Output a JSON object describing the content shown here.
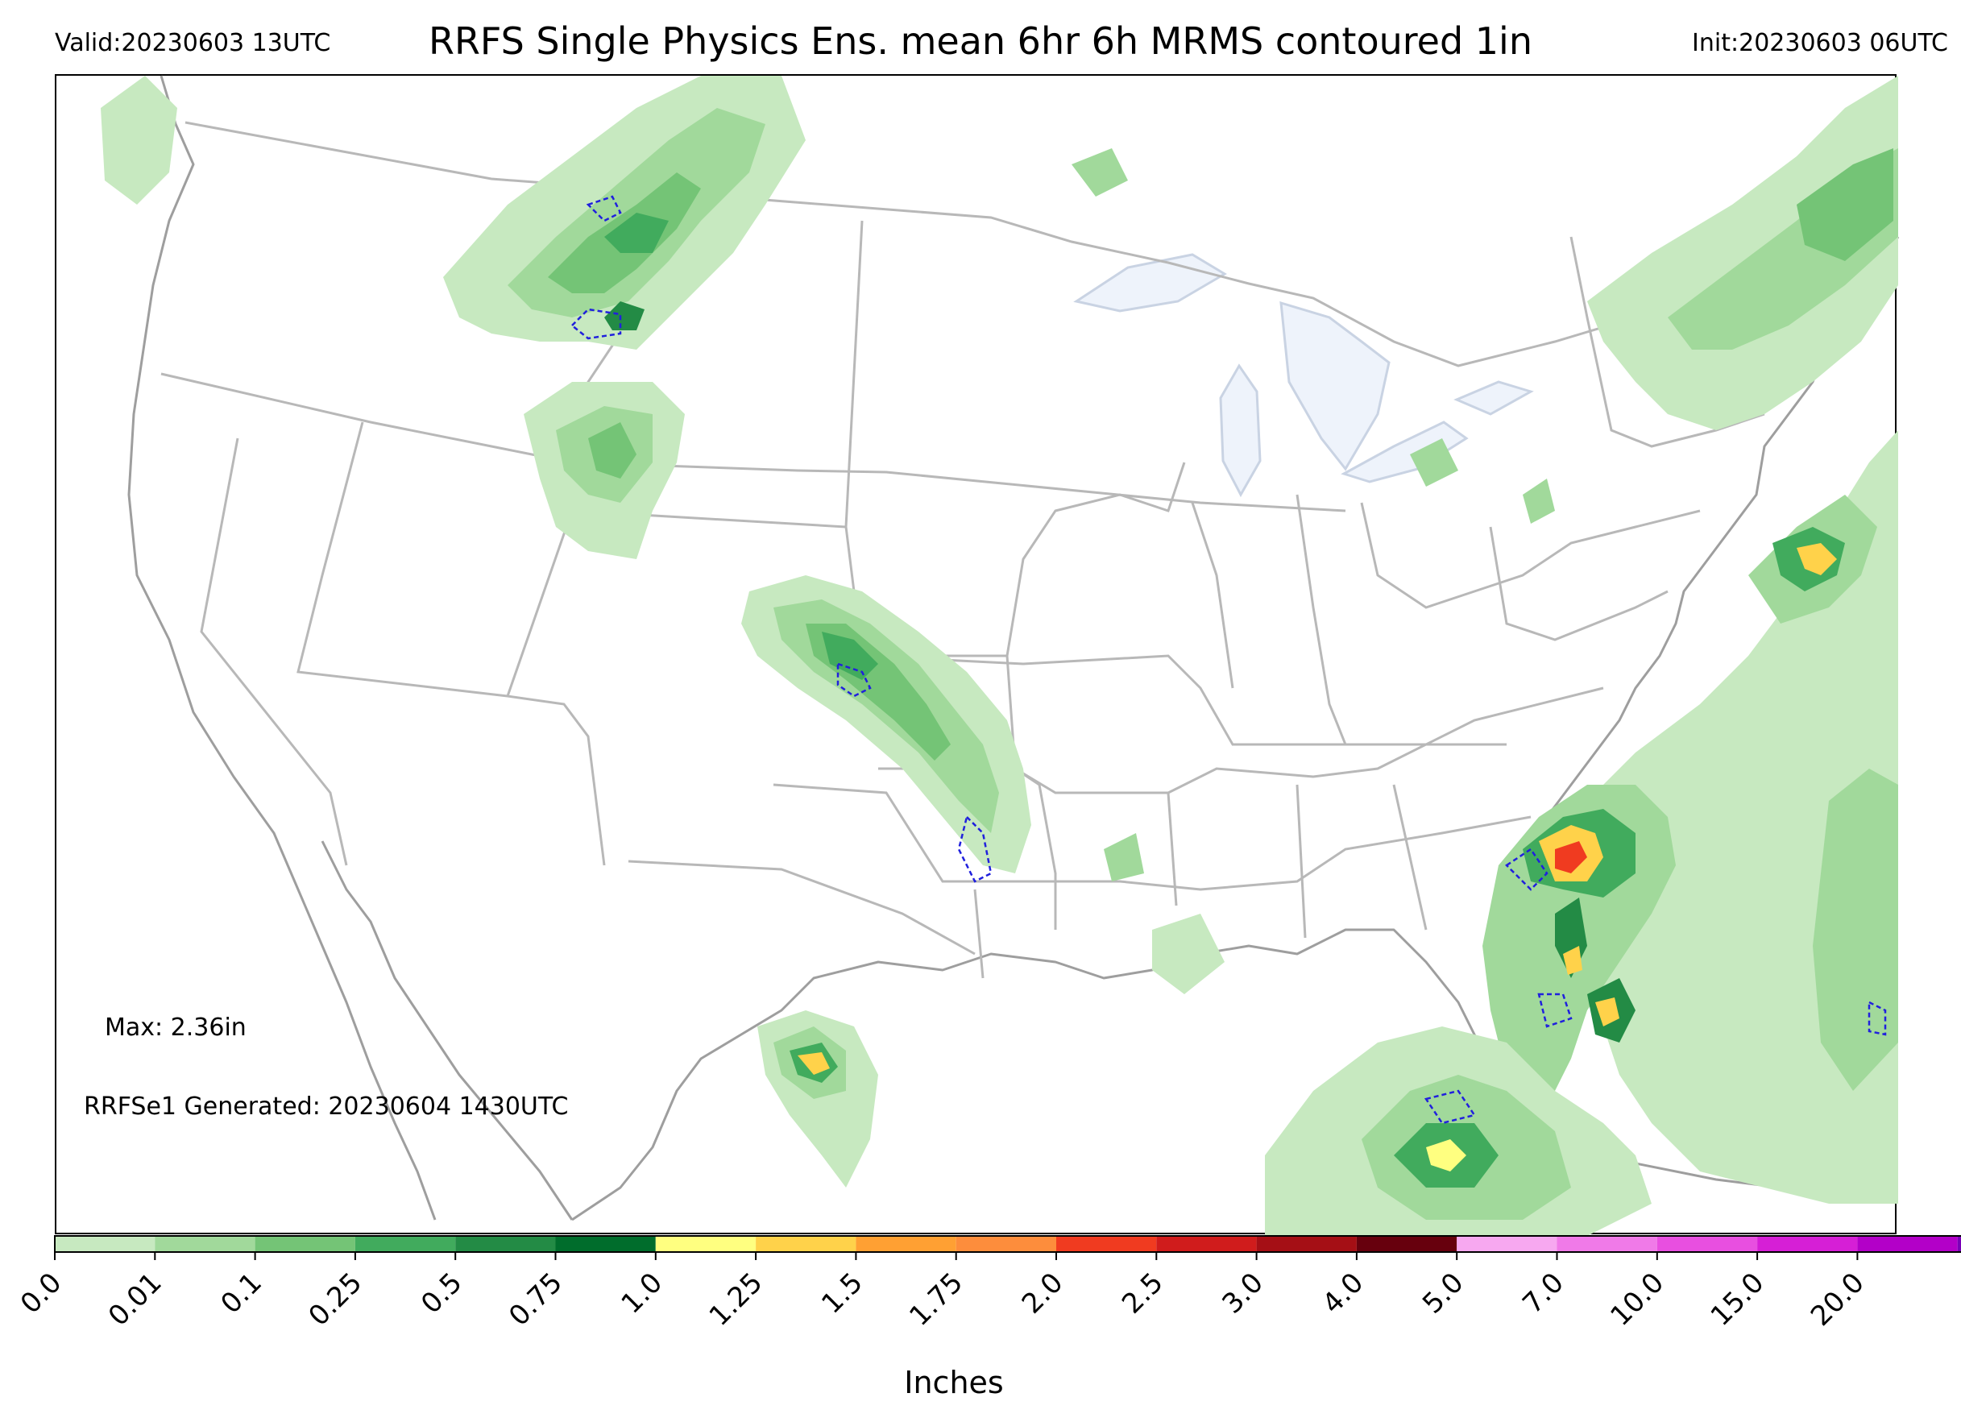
{
  "header": {
    "valid": "Valid:20230603 13UTC",
    "title": "RRFS Single Physics Ens. mean 6hr 6h MRMS contoured 1in",
    "init": "Init:20230603 06UTC"
  },
  "annotations": {
    "max": "Max: 2.36in",
    "generated": "RRFSe1 Generated: 20230604 1430UTC"
  },
  "colorbar": {
    "label": "Inches",
    "ticks": [
      "0.0",
      "0.01",
      "0.1",
      "0.25",
      "0.5",
      "0.75",
      "1.0",
      "1.25",
      "1.5",
      "1.75",
      "2.0",
      "2.5",
      "3.0",
      "4.0",
      "5.0",
      "7.0",
      "10.0",
      "15.0",
      "20.0"
    ],
    "colors": [
      "#ffffff",
      "#c7e9c0",
      "#a1d99b",
      "#74c476",
      "#41ab5d",
      "#238b45",
      "#006d2c",
      "#ffff80",
      "#ffd24a",
      "#ffa033",
      "#fd8d3c",
      "#f03b20",
      "#d01c1c",
      "#a50f15",
      "#67000d",
      "#f7a8f0",
      "#f07ae8",
      "#e84fe0",
      "#d61fd6",
      "#b300c8",
      "#7a00b8"
    ],
    "extend_color": "#6a0095"
  },
  "map": {
    "land_outline_color": "#9e9e9e",
    "border_color": "#b8b8b8",
    "lake_fill": "#eef3fb",
    "contour_color": "#2020dd"
  }
}
